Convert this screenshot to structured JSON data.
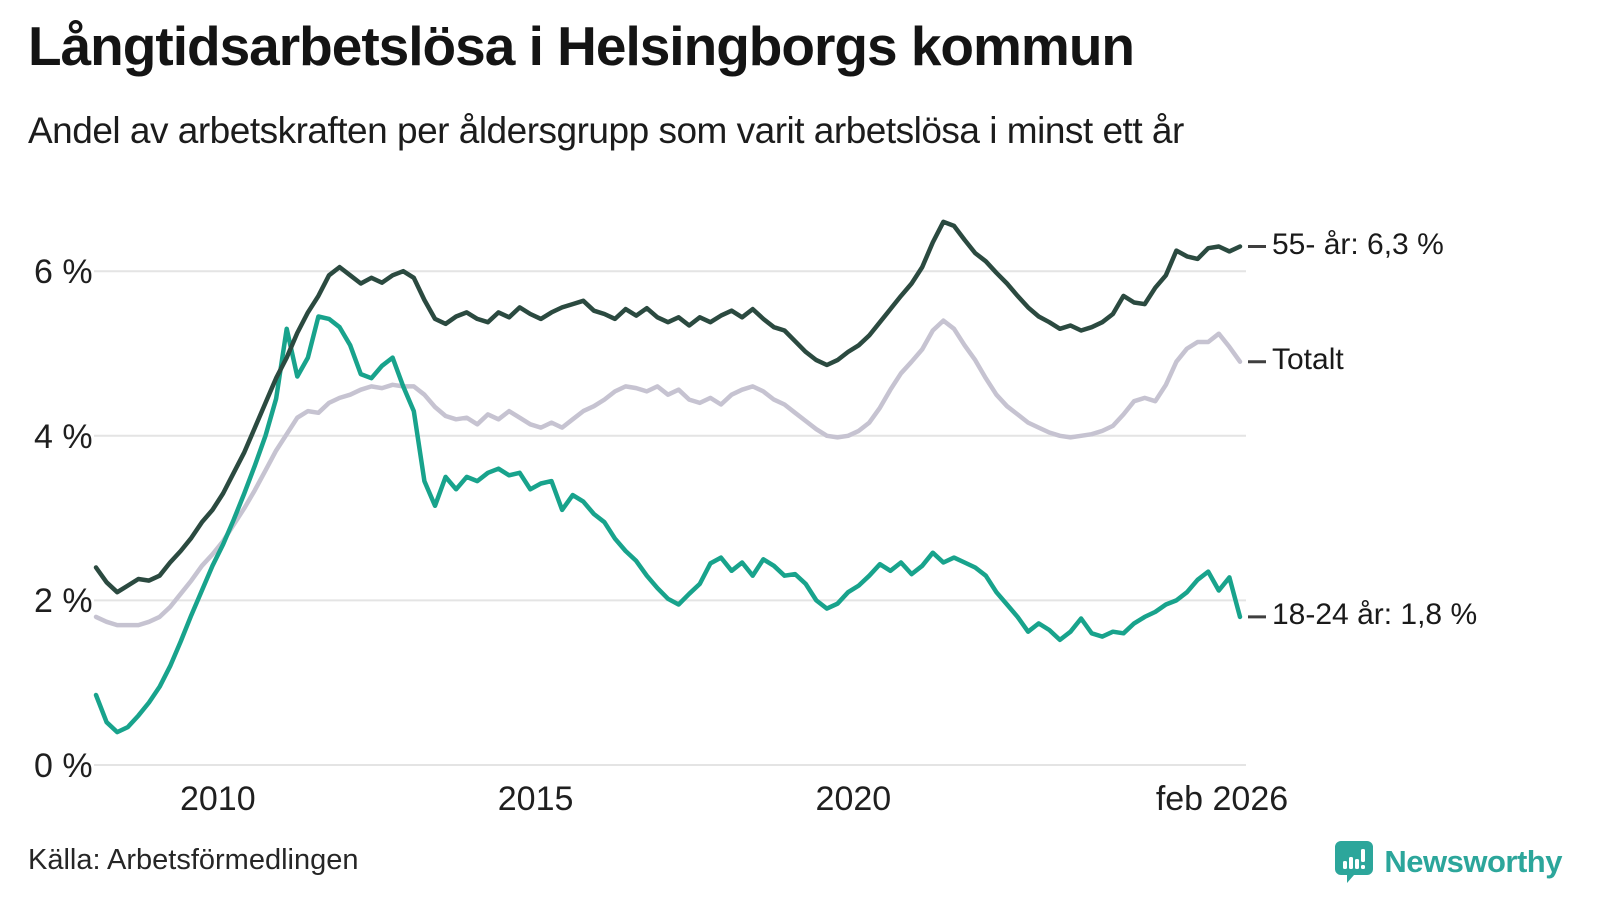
{
  "header": {
    "title": "Långtidsarbetslösa i Helsingborgs kommun",
    "subtitle": "Andel av arbetskraften per åldersgrupp som varit arbetslösa i minst ett år"
  },
  "footer": {
    "source": "Källa: Arbetsförmedlingen",
    "brand": "Newsworthy"
  },
  "colors": {
    "grid": "#e4e4e4",
    "annotation_tick": "#3f3f3f",
    "brand_teal": "#2ca69b"
  },
  "chart_data": {
    "type": "line",
    "title": "Långtidsarbetslösa i Helsingborgs kommun",
    "subtitle": "Andel av arbetskraften per åldersgrupp som varit arbetslösa i minst ett år",
    "unit": "% av arbetskraften",
    "x_start": 2008.0833,
    "x_step": 0.1667,
    "x_end": 2026.0833,
    "x_tick_years": [
      2010,
      2015,
      2020,
      2026.0833
    ],
    "x_tick_labels": [
      "2010",
      "2015",
      "2020",
      "feb 2026"
    ],
    "y_tick_values": [
      0,
      2,
      4,
      6
    ],
    "y_tick_labels": [
      "0 %",
      "2 %",
      "4 %",
      "6 %"
    ],
    "ylim": [
      0,
      6.9
    ],
    "grid": "horizontal",
    "legend_position": "end-of-line-labels",
    "series": [
      {
        "name": "55- år",
        "end_label": "55- år: 6,3 %",
        "end_value": 6.3,
        "color": "#2b4a40",
        "values": [
          2.4,
          2.22,
          2.1,
          2.18,
          2.26,
          2.24,
          2.3,
          2.46,
          2.6,
          2.76,
          2.95,
          3.1,
          3.3,
          3.55,
          3.8,
          4.1,
          4.4,
          4.7,
          4.95,
          5.25,
          5.5,
          5.7,
          5.95,
          6.05,
          5.95,
          5.85,
          5.92,
          5.86,
          5.95,
          6.0,
          5.92,
          5.65,
          5.42,
          5.36,
          5.45,
          5.5,
          5.42,
          5.38,
          5.5,
          5.44,
          5.56,
          5.48,
          5.42,
          5.5,
          5.56,
          5.6,
          5.64,
          5.52,
          5.48,
          5.42,
          5.54,
          5.46,
          5.55,
          5.44,
          5.38,
          5.44,
          5.34,
          5.44,
          5.38,
          5.46,
          5.52,
          5.44,
          5.54,
          5.42,
          5.32,
          5.28,
          5.15,
          5.02,
          4.92,
          4.86,
          4.92,
          5.02,
          5.1,
          5.22,
          5.38,
          5.54,
          5.7,
          5.85,
          6.05,
          6.35,
          6.6,
          6.55,
          6.38,
          6.22,
          6.12,
          5.98,
          5.85,
          5.7,
          5.56,
          5.45,
          5.38,
          5.3,
          5.34,
          5.28,
          5.32,
          5.38,
          5.48,
          5.7,
          5.62,
          5.6,
          5.8,
          5.95,
          6.25,
          6.18,
          6.15,
          6.28,
          6.3,
          6.24,
          6.3
        ]
      },
      {
        "name": "Totalt",
        "end_label": "Totalt",
        "end_value": 4.9,
        "color": "#c6c3d1",
        "values": [
          1.8,
          1.74,
          1.7,
          1.7,
          1.7,
          1.74,
          1.8,
          1.92,
          2.08,
          2.24,
          2.42,
          2.56,
          2.72,
          2.92,
          3.12,
          3.34,
          3.58,
          3.82,
          4.02,
          4.22,
          4.3,
          4.28,
          4.4,
          4.46,
          4.5,
          4.56,
          4.6,
          4.58,
          4.62,
          4.6,
          4.6,
          4.5,
          4.35,
          4.24,
          4.2,
          4.22,
          4.14,
          4.26,
          4.2,
          4.3,
          4.22,
          4.14,
          4.1,
          4.16,
          4.1,
          4.2,
          4.3,
          4.36,
          4.44,
          4.54,
          4.6,
          4.58,
          4.54,
          4.6,
          4.5,
          4.56,
          4.44,
          4.4,
          4.46,
          4.38,
          4.5,
          4.56,
          4.6,
          4.54,
          4.44,
          4.38,
          4.28,
          4.18,
          4.08,
          4.0,
          3.98,
          4.0,
          4.06,
          4.16,
          4.34,
          4.56,
          4.76,
          4.9,
          5.05,
          5.28,
          5.4,
          5.3,
          5.1,
          4.92,
          4.7,
          4.5,
          4.36,
          4.26,
          4.16,
          4.1,
          4.04,
          4.0,
          3.98,
          4.0,
          4.02,
          4.06,
          4.12,
          4.26,
          4.42,
          4.46,
          4.42,
          4.62,
          4.9,
          5.06,
          5.14,
          5.14,
          5.24,
          5.08,
          4.9
        ]
      },
      {
        "name": "18-24 år",
        "end_label": "18-24 år: 1,8 %",
        "end_value": 1.8,
        "color": "#18a38c",
        "values": [
          0.85,
          0.52,
          0.4,
          0.46,
          0.6,
          0.76,
          0.95,
          1.2,
          1.5,
          1.82,
          2.12,
          2.42,
          2.68,
          2.98,
          3.3,
          3.64,
          4.0,
          4.45,
          5.3,
          4.72,
          4.95,
          5.45,
          5.42,
          5.32,
          5.1,
          4.75,
          4.7,
          4.85,
          4.95,
          4.6,
          4.3,
          3.45,
          3.15,
          3.5,
          3.35,
          3.5,
          3.45,
          3.55,
          3.6,
          3.52,
          3.55,
          3.35,
          3.42,
          3.45,
          3.1,
          3.28,
          3.2,
          3.05,
          2.95,
          2.75,
          2.6,
          2.48,
          2.3,
          2.15,
          2.02,
          1.95,
          2.08,
          2.2,
          2.45,
          2.52,
          2.36,
          2.46,
          2.3,
          2.5,
          2.42,
          2.3,
          2.32,
          2.2,
          2.0,
          1.9,
          1.96,
          2.1,
          2.18,
          2.3,
          2.44,
          2.36,
          2.46,
          2.32,
          2.42,
          2.58,
          2.46,
          2.52,
          2.46,
          2.4,
          2.3,
          2.1,
          1.95,
          1.8,
          1.62,
          1.72,
          1.64,
          1.52,
          1.62,
          1.78,
          1.6,
          1.56,
          1.62,
          1.6,
          1.72,
          1.8,
          1.86,
          1.95,
          2.0,
          2.1,
          2.25,
          2.35,
          2.12,
          2.28,
          1.8
        ]
      }
    ]
  }
}
